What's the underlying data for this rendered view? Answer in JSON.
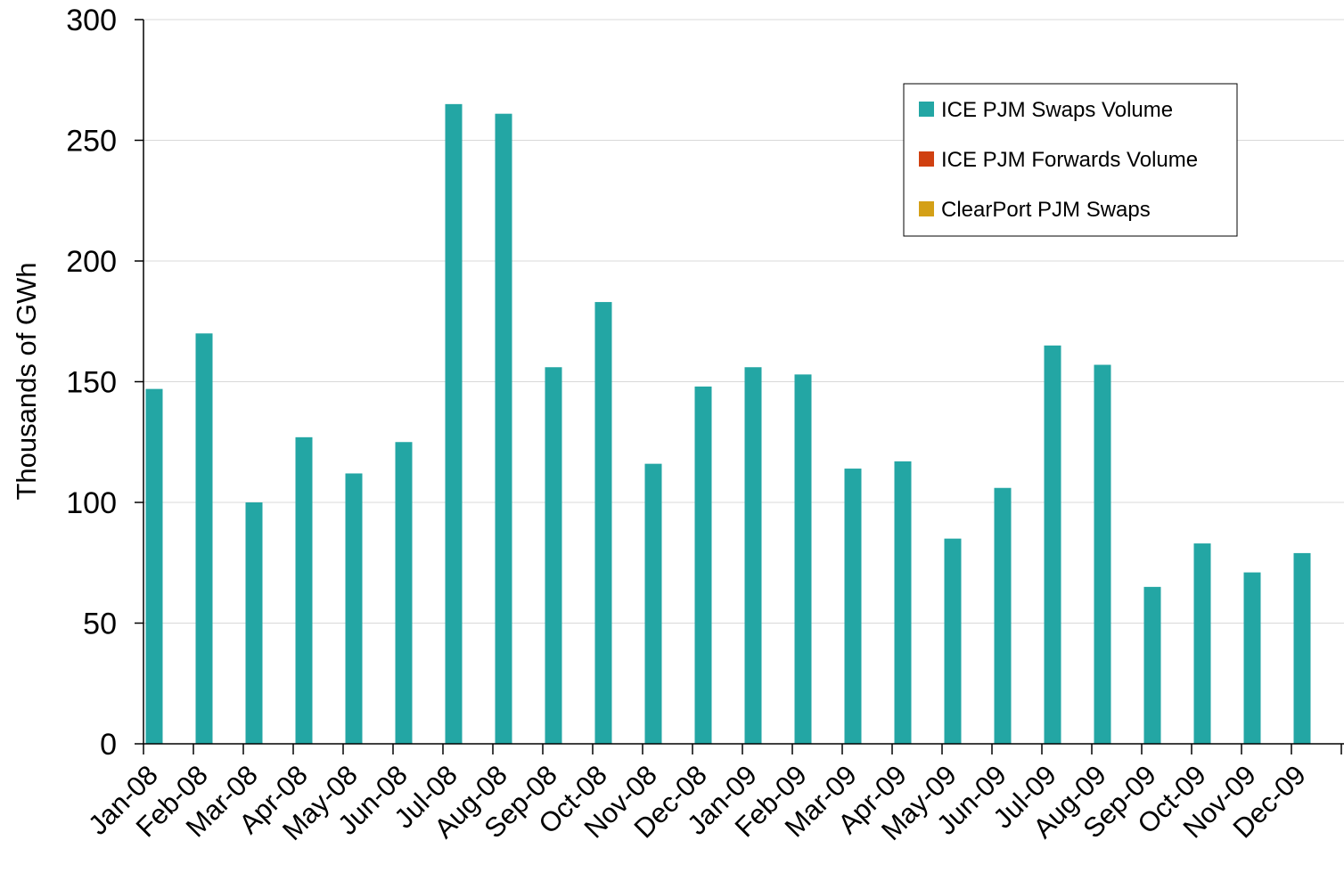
{
  "chart_data": {
    "type": "bar",
    "title": "",
    "xlabel": "",
    "ylabel": "Thousands of GWh",
    "ylim": [
      0,
      300
    ],
    "yticks": [
      0,
      50,
      100,
      150,
      200,
      250,
      300
    ],
    "grid": true,
    "legend_position": "top-right",
    "categories": [
      "Jan-08",
      "Feb-08",
      "Mar-08",
      "Apr-08",
      "May-08",
      "Jun-08",
      "Jul-08",
      "Aug-08",
      "Sep-08",
      "Oct-08",
      "Nov-08",
      "Dec-08",
      "Jan-09",
      "Feb-09",
      "Mar-09",
      "Apr-09",
      "May-09",
      "Jun-09",
      "Jul-09",
      "Aug-09",
      "Sep-09",
      "Oct-09",
      "Nov-09",
      "Dec-09"
    ],
    "series": [
      {
        "name": "ICE PJM Swaps Volume",
        "color": "#23a6a4",
        "values": [
          147,
          170,
          100,
          127,
          112,
          125,
          265,
          261,
          156,
          183,
          116,
          148,
          156,
          153,
          114,
          117,
          85,
          106,
          165,
          157,
          65,
          83,
          71,
          79
        ]
      },
      {
        "name": "ICE PJM Forwards Volume",
        "color": "#d04010",
        "values": [
          0,
          0,
          0,
          0,
          0,
          0,
          0,
          0,
          0,
          0,
          0,
          0,
          0,
          0,
          0,
          0,
          0,
          0,
          0,
          0,
          0,
          0,
          0,
          0
        ]
      },
      {
        "name": "ClearPort PJM Swaps",
        "color": "#d4a017",
        "values": [
          0,
          0,
          0,
          0,
          0,
          0,
          0,
          0,
          0,
          0,
          0,
          0,
          0,
          0,
          0,
          0,
          0,
          0,
          0,
          0,
          0,
          0,
          0,
          0
        ]
      }
    ]
  }
}
